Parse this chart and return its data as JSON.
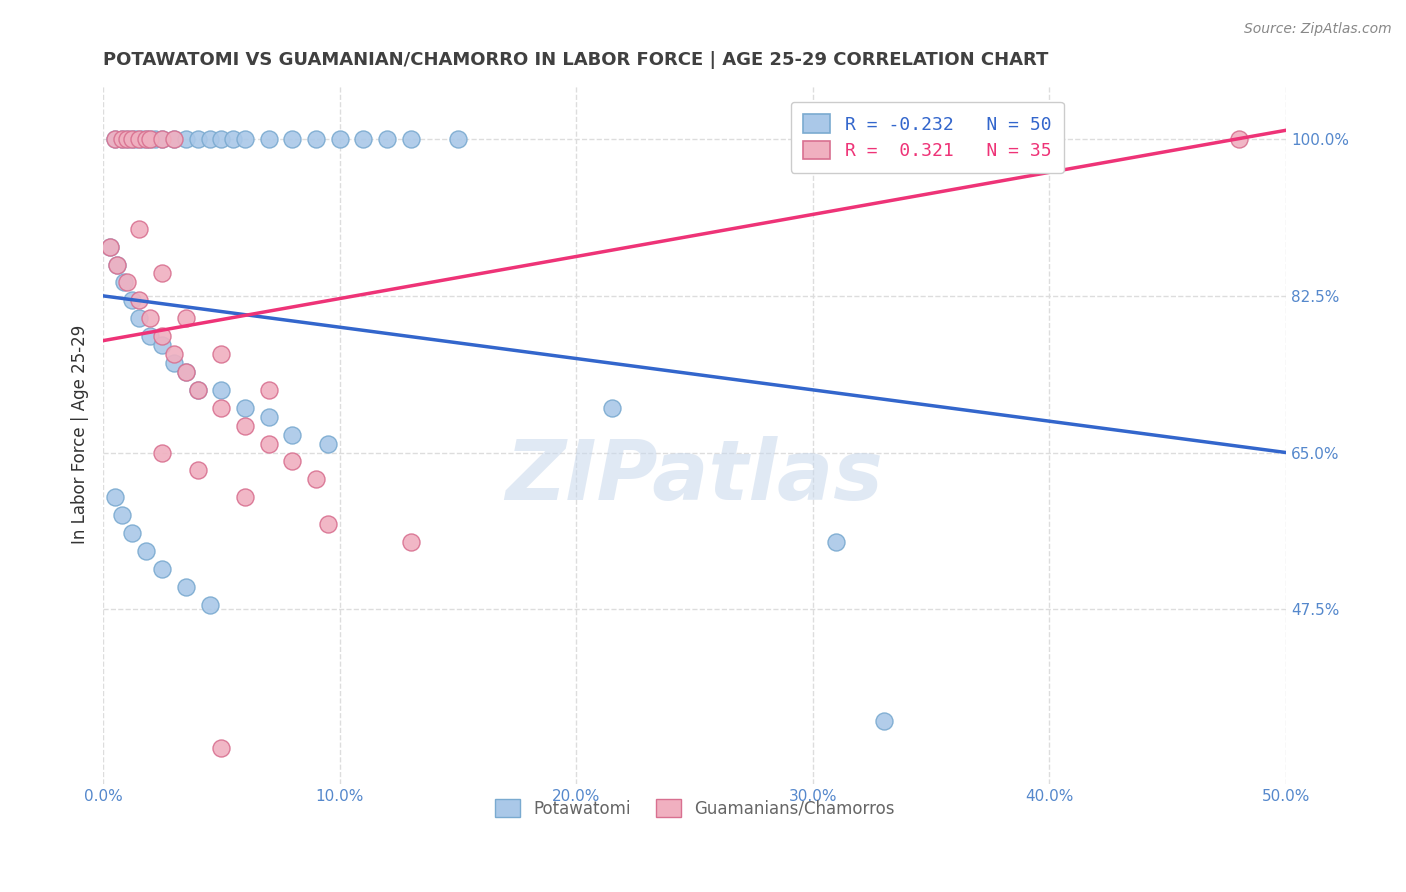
{
  "title": "POTAWATOMI VS GUAMANIAN/CHAMORRO IN LABOR FORCE | AGE 25-29 CORRELATION CHART",
  "source": "Source: ZipAtlas.com",
  "ylabel": "In Labor Force | Age 25-29",
  "xlim": [
    0.0,
    0.5
  ],
  "ylim": [
    0.28,
    1.06
  ],
  "xticks": [
    0.0,
    0.1,
    0.2,
    0.3,
    0.4,
    0.5
  ],
  "xticklabels": [
    "0.0%",
    "10.0%",
    "20.0%",
    "30.0%",
    "40.0%",
    "50.0%"
  ],
  "ytick_positions": [
    0.475,
    0.65,
    0.825,
    1.0
  ],
  "ytick_labels": [
    "47.5%",
    "65.0%",
    "82.5%",
    "100.0%"
  ],
  "blue_color": "#aac8e8",
  "blue_edge": "#7aaad0",
  "pink_color": "#f0b0c0",
  "pink_edge": "#d87090",
  "blue_line_color": "#3366cc",
  "pink_line_color": "#ee3377",
  "R_blue": -0.232,
  "N_blue": 50,
  "R_pink": 0.321,
  "N_pink": 35,
  "blue_line_x0": 0.0,
  "blue_line_y0": 0.825,
  "blue_line_x1": 0.5,
  "blue_line_y1": 0.65,
  "pink_line_x0": 0.0,
  "pink_line_y0": 0.775,
  "pink_line_x1": 0.5,
  "pink_line_y1": 1.01,
  "blue_scatter_x": [
    0.005,
    0.008,
    0.01,
    0.012,
    0.014,
    0.016,
    0.018,
    0.02,
    0.022,
    0.025,
    0.03,
    0.035,
    0.04,
    0.045,
    0.05,
    0.055,
    0.06,
    0.07,
    0.08,
    0.09,
    0.1,
    0.11,
    0.12,
    0.13,
    0.15,
    0.003,
    0.006,
    0.009,
    0.012,
    0.015,
    0.02,
    0.025,
    0.03,
    0.035,
    0.04,
    0.05,
    0.06,
    0.07,
    0.08,
    0.095,
    0.005,
    0.008,
    0.012,
    0.018,
    0.025,
    0.035,
    0.045,
    0.215,
    0.31,
    0.33
  ],
  "blue_scatter_y": [
    1.0,
    1.0,
    1.0,
    1.0,
    1.0,
    1.0,
    1.0,
    1.0,
    1.0,
    1.0,
    1.0,
    1.0,
    1.0,
    1.0,
    1.0,
    1.0,
    1.0,
    1.0,
    1.0,
    1.0,
    1.0,
    1.0,
    1.0,
    1.0,
    1.0,
    0.88,
    0.86,
    0.84,
    0.82,
    0.8,
    0.78,
    0.77,
    0.75,
    0.74,
    0.72,
    0.72,
    0.7,
    0.69,
    0.67,
    0.66,
    0.6,
    0.58,
    0.56,
    0.54,
    0.52,
    0.5,
    0.48,
    0.7,
    0.55,
    0.35
  ],
  "pink_scatter_x": [
    0.005,
    0.008,
    0.01,
    0.012,
    0.015,
    0.018,
    0.02,
    0.025,
    0.03,
    0.003,
    0.006,
    0.01,
    0.015,
    0.02,
    0.025,
    0.03,
    0.035,
    0.04,
    0.05,
    0.06,
    0.07,
    0.08,
    0.09,
    0.015,
    0.025,
    0.035,
    0.05,
    0.07,
    0.025,
    0.04,
    0.06,
    0.095,
    0.13,
    0.48,
    0.05
  ],
  "pink_scatter_y": [
    1.0,
    1.0,
    1.0,
    1.0,
    1.0,
    1.0,
    1.0,
    1.0,
    1.0,
    0.88,
    0.86,
    0.84,
    0.82,
    0.8,
    0.78,
    0.76,
    0.74,
    0.72,
    0.7,
    0.68,
    0.66,
    0.64,
    0.62,
    0.9,
    0.85,
    0.8,
    0.76,
    0.72,
    0.65,
    0.63,
    0.6,
    0.57,
    0.55,
    1.0,
    0.32
  ],
  "watermark_text": "ZIPatlas",
  "grid_color": "#dddddd",
  "background_color": "#ffffff",
  "title_color": "#404040",
  "tick_label_color": "#5588cc"
}
